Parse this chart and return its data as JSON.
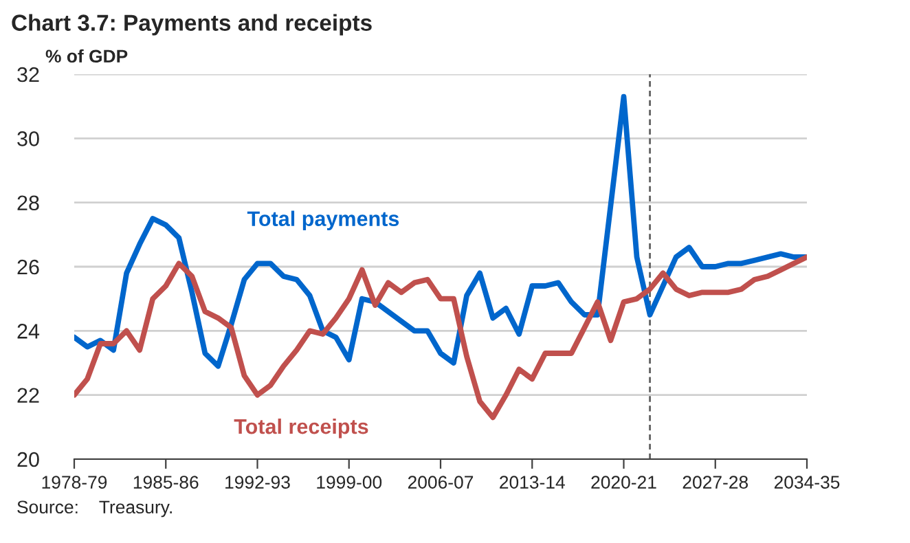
{
  "chart_data": {
    "type": "line",
    "title": "Chart 3.7: Payments and receipts",
    "ylabel": "% of GDP",
    "categories": [
      "1978-79",
      null,
      null,
      null,
      null,
      null,
      null,
      "1985-86",
      null,
      null,
      null,
      null,
      null,
      null,
      "1992-93",
      null,
      null,
      null,
      null,
      null,
      null,
      "1999-00",
      null,
      null,
      null,
      null,
      null,
      null,
      "2006-07",
      null,
      null,
      null,
      null,
      null,
      null,
      "2013-14",
      null,
      null,
      null,
      null,
      null,
      null,
      "2020-21",
      null,
      null,
      null,
      null,
      null,
      null,
      "2027-28",
      null,
      null,
      null,
      null,
      null,
      null,
      "2034-35"
    ],
    "series": [
      {
        "name": "Total payments",
        "color": "#0066cc",
        "values": [
          23.8,
          23.5,
          23.7,
          23.4,
          25.8,
          26.7,
          27.5,
          27.3,
          26.9,
          25.2,
          23.3,
          22.9,
          24.2,
          25.6,
          26.1,
          26.1,
          25.7,
          25.6,
          25.1,
          24.0,
          23.8,
          23.1,
          25.0,
          24.9,
          24.6,
          24.3,
          24.0,
          24.0,
          23.3,
          23.0,
          25.1,
          25.8,
          24.4,
          24.7,
          23.9,
          25.4,
          25.4,
          25.5,
          24.9,
          24.5,
          24.5,
          27.9,
          31.3,
          26.3,
          24.5,
          25.4,
          26.3,
          26.6,
          26.0,
          26.0,
          26.1,
          26.1,
          26.2,
          26.3,
          26.4,
          26.3,
          26.3
        ]
      },
      {
        "name": "Total receipts",
        "color": "#c0504d",
        "values": [
          22.0,
          22.5,
          23.6,
          23.6,
          24.0,
          23.4,
          25.0,
          25.4,
          26.1,
          25.7,
          24.6,
          24.4,
          24.1,
          22.6,
          22.0,
          22.3,
          22.9,
          23.4,
          24.0,
          23.9,
          24.4,
          25.0,
          25.9,
          24.8,
          25.5,
          25.2,
          25.5,
          25.6,
          25.0,
          25.0,
          23.2,
          21.8,
          21.3,
          22.0,
          22.8,
          22.5,
          23.3,
          23.3,
          23.3,
          24.1,
          24.9,
          23.7,
          24.9,
          25.0,
          25.3,
          25.8,
          25.3,
          25.1,
          25.2,
          25.2,
          25.2,
          25.3,
          25.6,
          25.7,
          25.9,
          26.1,
          26.3
        ]
      }
    ],
    "ylim": [
      20,
      32
    ],
    "yticks": [
      20,
      22,
      24,
      26,
      28,
      30,
      32
    ],
    "grid": "y",
    "annotations": [
      "Source:    Treasury."
    ]
  }
}
